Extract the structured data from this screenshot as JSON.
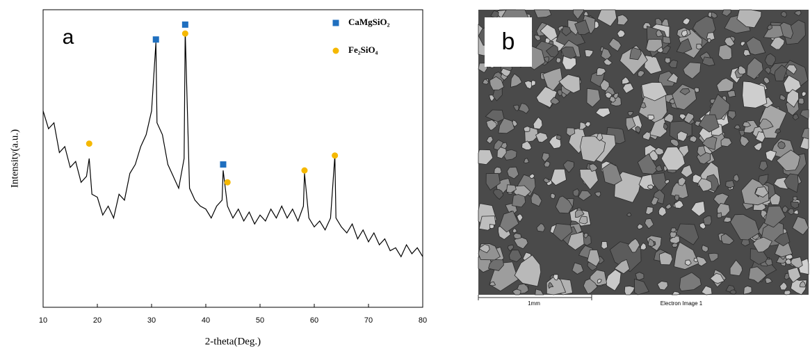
{
  "chart_data": {
    "type": "line",
    "annotation": "a",
    "xlabel": "2-theta(Deg.)",
    "ylabel": "Intensity(a.u.)",
    "xlim": [
      10,
      80
    ],
    "xticks": [
      10,
      20,
      30,
      40,
      50,
      60,
      70,
      80
    ],
    "ylim": [
      0,
      100
    ],
    "series": [
      {
        "color": "#000000",
        "x": [
          10,
          11,
          12,
          13,
          14,
          15,
          16,
          17,
          18,
          18.5,
          19,
          20,
          21,
          22,
          23,
          24,
          25,
          26,
          27,
          28,
          29,
          30,
          30.8,
          31,
          32,
          33,
          34,
          35,
          36,
          36.2,
          37,
          38,
          39,
          40,
          41,
          42,
          43,
          43.2,
          44,
          45,
          46,
          47,
          48,
          49,
          50,
          51,
          52,
          53,
          54,
          55,
          56,
          57,
          58,
          58.2,
          59,
          60,
          61,
          62,
          63,
          63.8,
          64,
          65,
          66,
          67,
          68,
          69,
          70,
          71,
          72,
          73,
          74,
          75,
          76,
          77,
          78,
          79,
          80
        ],
        "values": [
          66,
          60,
          62,
          52,
          54,
          47,
          49,
          42,
          44,
          50,
          38,
          37,
          31,
          34,
          30,
          38,
          36,
          45,
          48,
          54,
          58,
          66,
          89,
          62,
          58,
          48,
          44,
          40,
          50,
          93,
          40,
          36,
          34,
          33,
          30,
          34,
          36,
          46,
          34,
          30,
          33,
          29,
          32,
          28,
          31,
          29,
          33,
          30,
          34,
          30,
          33,
          29,
          34,
          45,
          30,
          27,
          29,
          26,
          30,
          51,
          30,
          27,
          25,
          28,
          23,
          26,
          22,
          25,
          21,
          23,
          19,
          20,
          17,
          21,
          18,
          20,
          17
        ]
      },
      {
        "name": "CaMgSiO₂",
        "color": "#1f6fbf",
        "marker": "square",
        "x": [
          30.8,
          36.2,
          43.2
        ],
        "values": [
          90,
          95,
          48
        ]
      },
      {
        "name": "Fe₂SiO₄",
        "color": "#f5b800",
        "marker": "circle",
        "x": [
          18.5,
          36.2,
          44,
          58.2,
          63.8
        ],
        "values": [
          55,
          92,
          42,
          46,
          51
        ]
      }
    ]
  },
  "image_b": {
    "label": "b",
    "scale_bar": "1mm",
    "caption": "Electron Image 1"
  }
}
